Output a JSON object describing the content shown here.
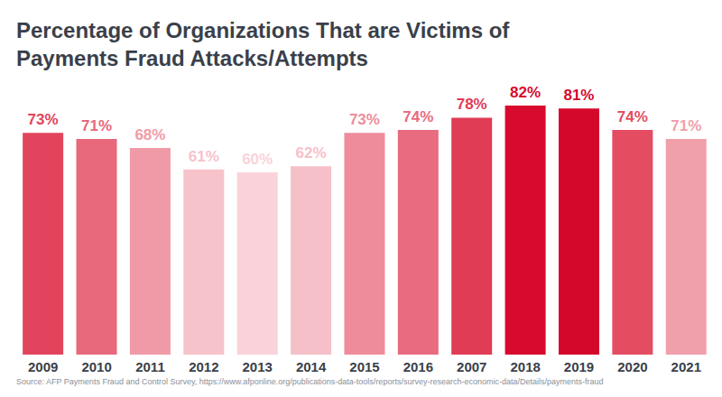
{
  "chart_data": {
    "type": "bar",
    "title": "Percentage of Organizations That are Victims of\nPayments Fraud Attacks/Attempts",
    "source": "Source: AFP Payments Fraud and Control Survey, https://www.afponline.org/publications-data-tools/reports/survey-research-economic-data/Details/payments-fraud",
    "categories": [
      "2009",
      "2010",
      "2011",
      "2012",
      "2013",
      "2014",
      "2015",
      "2016",
      "2007",
      "2018",
      "2019",
      "2020",
      "2021"
    ],
    "values": [
      73,
      71,
      68,
      61,
      60,
      62,
      73,
      74,
      78,
      82,
      81,
      74,
      71
    ],
    "value_labels": [
      "73%",
      "71%",
      "68%",
      "61%",
      "60%",
      "62%",
      "73%",
      "74%",
      "78%",
      "82%",
      "81%",
      "74%",
      "71%"
    ],
    "colors": [
      "#e2445d",
      "#e8687c",
      "#f09aa8",
      "#f7c3cb",
      "#f9d3d9",
      "#f6c0c8",
      "#ee8c9b",
      "#e86b7f",
      "#e03c55",
      "#d80a2d",
      "#d4082b",
      "#e44c62",
      "#f0a0ab"
    ],
    "data_labels": true,
    "tick_labels": "x",
    "grid": false
  }
}
